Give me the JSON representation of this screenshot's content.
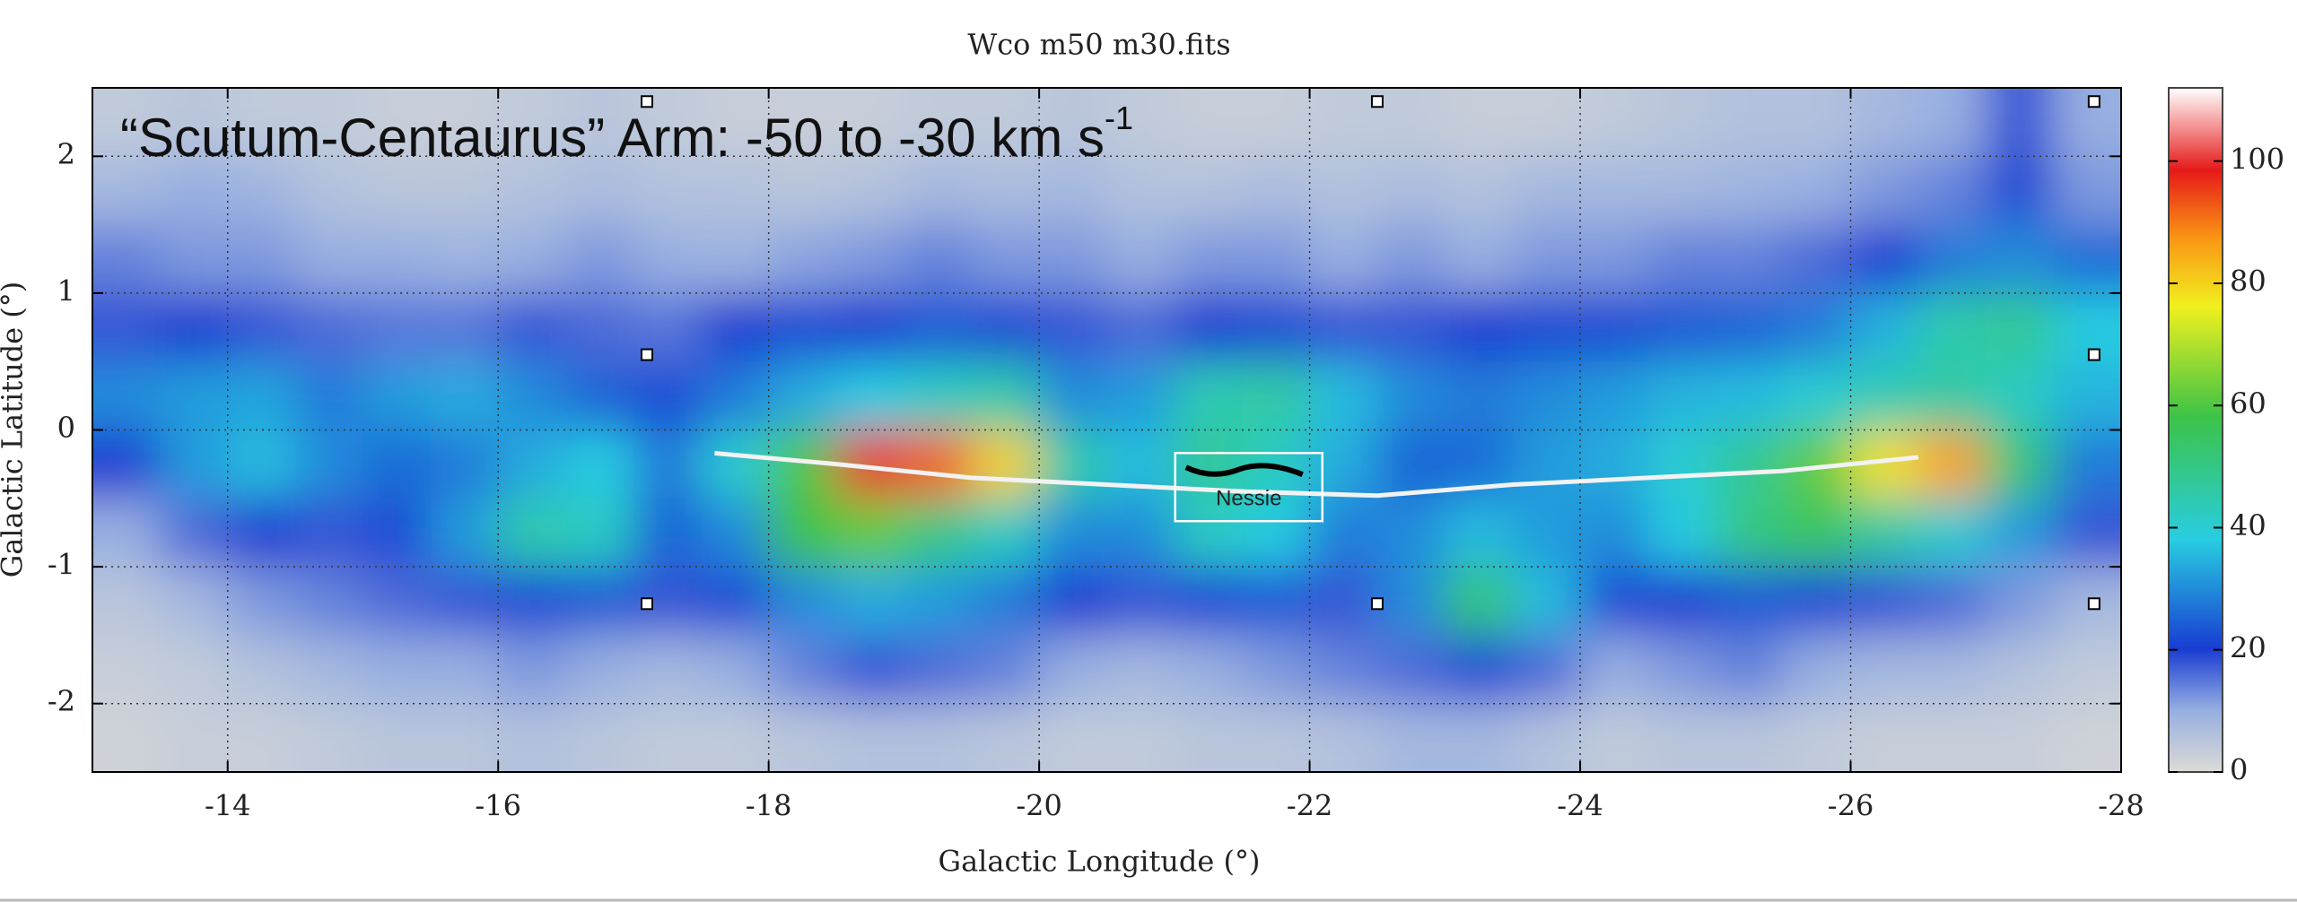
{
  "chart_data": {
    "type": "heatmap",
    "title": "Wco m50 m30.fits",
    "annotation": {
      "text": "“Scutum-Centaurus” Arm: -50 to -30 km s",
      "superscript": "-1"
    },
    "xlabel": "Galactic Longitude (°)",
    "ylabel": "Galactic Latitude (°)",
    "xlim": [
      -13,
      -28
    ],
    "xticks": [
      -14,
      -16,
      -18,
      -20,
      -22,
      -24,
      -26,
      -28
    ],
    "ylim": [
      -2.5,
      2.5
    ],
    "yticks": [
      -2,
      -1,
      0,
      1,
      2
    ],
    "grid": true,
    "clim": [
      0,
      112
    ],
    "cticks": [
      0,
      20,
      40,
      60,
      80,
      100
    ],
    "x": [
      -13.25,
      -13.75,
      -14.25,
      -14.75,
      -15.25,
      -15.75,
      -16.25,
      -16.75,
      -17.25,
      -17.75,
      -18.25,
      -18.75,
      -19.25,
      -19.75,
      -20.25,
      -20.75,
      -21.25,
      -21.75,
      -22.25,
      -22.75,
      -23.25,
      -23.75,
      -24.25,
      -24.75,
      -25.25,
      -25.75,
      -26.25,
      -26.75,
      -27.25,
      -27.75
    ],
    "y": [
      2.25,
      1.75,
      1.25,
      0.75,
      0.25,
      -0.25,
      -0.75,
      -1.25,
      -1.75,
      -2.25
    ],
    "z": [
      [
        4,
        5,
        4,
        4,
        3,
        3,
        4,
        5,
        4,
        3,
        3,
        3,
        4,
        4,
        5,
        4,
        3,
        3,
        4,
        4,
        3,
        3,
        4,
        5,
        6,
        6,
        8,
        10,
        18,
        10
      ],
      [
        8,
        10,
        9,
        6,
        5,
        5,
        6,
        7,
        6,
        6,
        5,
        6,
        8,
        7,
        8,
        6,
        6,
        7,
        6,
        7,
        6,
        8,
        8,
        8,
        9,
        10,
        12,
        14,
        22,
        12
      ],
      [
        14,
        12,
        12,
        10,
        10,
        9,
        10,
        12,
        10,
        9,
        11,
        12,
        14,
        12,
        12,
        10,
        12,
        12,
        10,
        12,
        10,
        12,
        12,
        14,
        14,
        16,
        20,
        28,
        30,
        26
      ],
      [
        18,
        20,
        18,
        16,
        15,
        15,
        18,
        16,
        15,
        20,
        22,
        20,
        24,
        22,
        18,
        16,
        20,
        22,
        18,
        18,
        20,
        22,
        22,
        24,
        25,
        28,
        35,
        45,
        48,
        38
      ],
      [
        30,
        32,
        33,
        28,
        32,
        34,
        30,
        25,
        22,
        28,
        34,
        38,
        42,
        45,
        30,
        32,
        44,
        46,
        36,
        30,
        28,
        30,
        32,
        35,
        36,
        40,
        44,
        46,
        42,
        35
      ],
      [
        20,
        32,
        36,
        30,
        26,
        28,
        34,
        38,
        28,
        40,
        60,
        100,
        92,
        80,
        45,
        36,
        48,
        42,
        34,
        25,
        26,
        32,
        34,
        40,
        48,
        62,
        78,
        86,
        52,
        28
      ],
      [
        10,
        16,
        20,
        18,
        22,
        32,
        45,
        42,
        25,
        30,
        58,
        62,
        50,
        42,
        30,
        30,
        42,
        38,
        28,
        30,
        36,
        32,
        30,
        38,
        50,
        55,
        46,
        40,
        32,
        18
      ],
      [
        5,
        8,
        12,
        14,
        16,
        18,
        22,
        24,
        18,
        22,
        30,
        34,
        32,
        28,
        20,
        18,
        22,
        24,
        18,
        30,
        52,
        36,
        22,
        20,
        24,
        22,
        18,
        16,
        12,
        8
      ],
      [
        3,
        4,
        6,
        8,
        10,
        10,
        12,
        10,
        8,
        10,
        14,
        18,
        16,
        14,
        10,
        8,
        10,
        12,
        14,
        16,
        22,
        16,
        10,
        12,
        14,
        10,
        8,
        8,
        6,
        4
      ],
      [
        2,
        3,
        3,
        4,
        5,
        5,
        6,
        5,
        4,
        4,
        5,
        6,
        6,
        5,
        4,
        4,
        5,
        5,
        6,
        8,
        8,
        6,
        4,
        5,
        5,
        4,
        3,
        3,
        3,
        2
      ]
    ],
    "ridge": {
      "color": "#f2f2f2",
      "x": [
        -17.6,
        -18.5,
        -19.5,
        -20.5,
        -21.5,
        -22.5,
        -23.5,
        -24.5,
        -25.5,
        -26.5
      ],
      "y": [
        -0.17,
        -0.25,
        -0.35,
        -0.4,
        -0.45,
        -0.48,
        -0.4,
        -0.35,
        -0.3,
        -0.2
      ]
    },
    "label": {
      "text": "Nessie",
      "x": -21.55,
      "y": -0.47
    },
    "markers": {
      "x": [
        -17.1,
        -22.5,
        -27.8,
        -17.1,
        -27.8,
        -17.1,
        -22.5,
        -27.8
      ],
      "y": [
        2.4,
        2.4,
        2.4,
        0.55,
        0.55,
        -1.27,
        -1.27,
        -1.27
      ]
    }
  }
}
